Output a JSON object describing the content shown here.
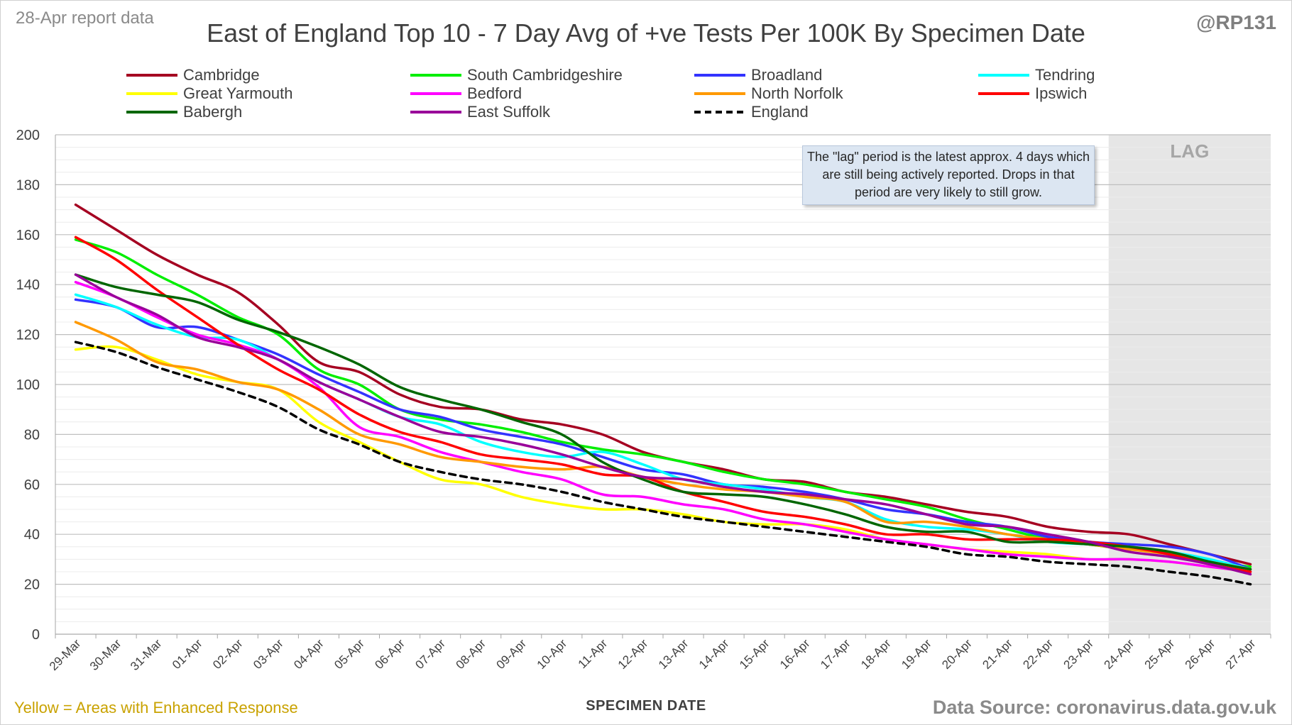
{
  "header": {
    "report_date": "28-Apr report data",
    "handle": "@RP131",
    "title": "East of England Top 10 - 7 Day Avg of +ve Tests Per 100K By Specimen Date"
  },
  "footer": {
    "note": "Yellow = Areas with Enhanced Response",
    "xlabel": "SPECIMEN DATE",
    "source": "Data Source: coronavirus.data.gov.uk"
  },
  "annotation": {
    "lag_label": "LAG",
    "lag_note": "The \"lag\" period is the latest approx. 4 days which are still being actively reported.  Drops in that period are very likely to still grow."
  },
  "chart_data": {
    "type": "line",
    "title": "East of England Top 10 - 7 Day Avg of +ve Tests Per 100K By Specimen Date",
    "xlabel": "SPECIMEN DATE",
    "ylabel": "",
    "ylim": [
      0,
      200
    ],
    "y_ticks": [
      0,
      20,
      40,
      60,
      80,
      100,
      120,
      140,
      160,
      180,
      200
    ],
    "grid": true,
    "legend_position": "top",
    "lag_start_category": "24-Apr",
    "categories": [
      "29-Mar",
      "30-Mar",
      "31-Mar",
      "01-Apr",
      "02-Apr",
      "03-Apr",
      "04-Apr",
      "05-Apr",
      "06-Apr",
      "07-Apr",
      "08-Apr",
      "09-Apr",
      "10-Apr",
      "11-Apr",
      "12-Apr",
      "13-Apr",
      "14-Apr",
      "15-Apr",
      "16-Apr",
      "17-Apr",
      "18-Apr",
      "19-Apr",
      "20-Apr",
      "21-Apr",
      "22-Apr",
      "23-Apr",
      "24-Apr",
      "25-Apr",
      "26-Apr",
      "27-Apr"
    ],
    "series": [
      {
        "name": "Cambridge",
        "color": "#a50021",
        "dash": false,
        "values": [
          172,
          162,
          152,
          144,
          137,
          124,
          109,
          105,
          96,
          91,
          90,
          86,
          84,
          80,
          73,
          69,
          66,
          62,
          61,
          57,
          55,
          52,
          49,
          47,
          43,
          41,
          40,
          36,
          32,
          28
        ]
      },
      {
        "name": "South Cambridgeshire",
        "color": "#00ee00",
        "dash": false,
        "values": [
          158,
          153,
          144,
          136,
          127,
          120,
          106,
          100,
          90,
          86,
          84,
          81,
          77,
          74,
          72,
          69,
          65,
          62,
          60,
          57,
          54,
          51,
          46,
          42,
          38,
          36,
          34,
          33,
          29,
          27
        ]
      },
      {
        "name": "Broadland",
        "color": "#3333ff",
        "dash": false,
        "values": [
          134,
          131,
          123,
          123,
          118,
          112,
          104,
          97,
          90,
          87,
          82,
          79,
          76,
          71,
          66,
          64,
          60,
          59,
          57,
          54,
          50,
          48,
          45,
          43,
          39,
          37,
          36,
          35,
          32,
          26
        ]
      },
      {
        "name": "Tendring",
        "color": "#00ffff",
        "dash": false,
        "values": [
          136,
          131,
          124,
          119,
          118,
          110,
          101,
          94,
          87,
          84,
          77,
          73,
          71,
          73,
          68,
          62,
          60,
          58,
          55,
          53,
          46,
          43,
          42,
          40,
          37,
          36,
          35,
          33,
          30,
          26
        ]
      },
      {
        "name": "Great Yarmouth",
        "color": "#ffff00",
        "dash": false,
        "values": [
          114,
          115,
          110,
          104,
          101,
          98,
          85,
          77,
          69,
          62,
          60,
          55,
          52,
          50,
          50,
          48,
          45,
          44,
          44,
          42,
          38,
          36,
          34,
          33,
          32,
          30,
          30,
          29,
          27,
          25
        ]
      },
      {
        "name": "Bedford",
        "color": "#ff00ff",
        "dash": false,
        "values": [
          141,
          135,
          127,
          120,
          116,
          110,
          99,
          83,
          79,
          73,
          69,
          65,
          62,
          56,
          55,
          52,
          50,
          46,
          44,
          41,
          38,
          36,
          34,
          32,
          31,
          30,
          30,
          29,
          27,
          25
        ]
      },
      {
        "name": "North Norfolk",
        "color": "#ff9900",
        "dash": false,
        "values": [
          125,
          118,
          109,
          106,
          101,
          98,
          90,
          80,
          76,
          71,
          69,
          67,
          66,
          67,
          63,
          60,
          58,
          57,
          55,
          53,
          45,
          45,
          43,
          40,
          38,
          36,
          34,
          32,
          29,
          26
        ]
      },
      {
        "name": "Ipswich",
        "color": "#ff0000",
        "dash": false,
        "values": [
          159,
          150,
          138,
          127,
          116,
          106,
          98,
          88,
          81,
          77,
          72,
          70,
          68,
          64,
          63,
          57,
          53,
          49,
          47,
          44,
          40,
          40,
          38,
          38,
          38,
          37,
          35,
          32,
          28,
          25
        ]
      },
      {
        "name": "Babergh",
        "color": "#006600",
        "dash": false,
        "values": [
          144,
          139,
          136,
          133,
          126,
          121,
          115,
          108,
          99,
          94,
          90,
          85,
          80,
          69,
          62,
          57,
          56,
          55,
          52,
          48,
          43,
          41,
          41,
          37,
          37,
          36,
          35,
          33,
          29,
          26
        ]
      },
      {
        "name": "East Suffolk",
        "color": "#990099",
        "dash": false,
        "values": [
          144,
          135,
          128,
          119,
          115,
          110,
          101,
          94,
          87,
          81,
          79,
          76,
          72,
          67,
          63,
          62,
          59,
          57,
          56,
          54,
          52,
          48,
          44,
          43,
          40,
          37,
          33,
          31,
          28,
          24
        ]
      },
      {
        "name": "England",
        "color": "#000000",
        "dash": true,
        "values": [
          117,
          113,
          107,
          102,
          97,
          91,
          82,
          76,
          69,
          65,
          62,
          60,
          57,
          53,
          50,
          47,
          45,
          43,
          41,
          39,
          37,
          35,
          32,
          31,
          29,
          28,
          27,
          25,
          23,
          20
        ]
      }
    ]
  }
}
